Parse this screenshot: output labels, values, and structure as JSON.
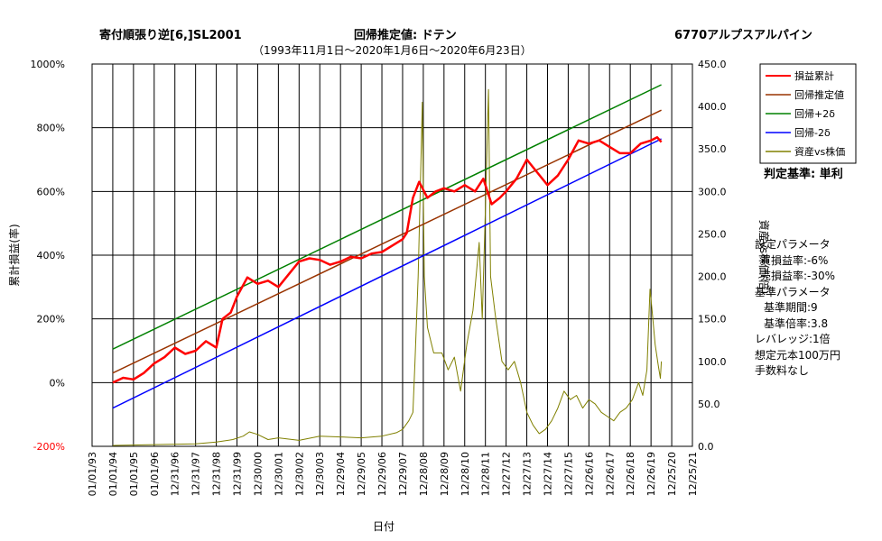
{
  "header": {
    "strategy": "寄付順張り逆[6,]SL2001",
    "method": "回帰推定値: ドテン",
    "ticker": "6770アルプスアルパイン",
    "period": "（1993年11月1日～2020年1月6日～2020年6月23日）"
  },
  "judgement": "判定基準: 単利",
  "params": [
    "設定パラメータ",
    "買損益率:-6%",
    "売損益率:-30%",
    "基準パラメータ",
    "基準期間:9",
    "基準倍率:3.8",
    "レバレッジ:1倍",
    "想定元本100万円",
    "手数料なし"
  ],
  "chart_data": {
    "type": "line",
    "xlabel": "日付",
    "ylabel": "累計損益(率)",
    "y2label": "資産vs株価(倍)",
    "ylim": [
      -200,
      1000
    ],
    "y2lim": [
      0,
      450
    ],
    "yticks": [
      "-200%",
      "0%",
      "200%",
      "400%",
      "600%",
      "800%",
      "1000%"
    ],
    "y2ticks": [
      "0.0",
      "50.0",
      "100.0",
      "150.0",
      "200.0",
      "250.0",
      "300.0",
      "350.0",
      "400.0",
      "450.0"
    ],
    "xticks": [
      "01/01/93",
      "01/01/94",
      "01/01/95",
      "01/01/96",
      "12/31/96",
      "12/31/97",
      "12/31/98",
      "12/31/99",
      "12/30/00",
      "12/30/01",
      "12/30/02",
      "12/30/03",
      "12/29/04",
      "12/29/05",
      "12/29/06",
      "12/29/07",
      "12/28/08",
      "12/28/09",
      "12/28/10",
      "12/28/11",
      "12/27/12",
      "12/27/13",
      "12/27/14",
      "12/27/15",
      "12/26/16",
      "12/26/17",
      "12/26/18",
      "12/26/19",
      "12/25/20",
      "12/25/21"
    ],
    "xrange_years": [
      1993,
      2022
    ],
    "grid": true,
    "legend_position": "top-right",
    "colors": {
      "pnl": "#ff0000",
      "regression": "#993300",
      "upper": "#008000",
      "lower": "#0000ff",
      "ratio": "#808000",
      "left_axis_neg": "#ff0000"
    },
    "legend": [
      "損益累計",
      "回帰推定値",
      "回帰+2δ",
      "回帰-2δ",
      "資産vs株価"
    ],
    "series": [
      {
        "name": "回帰推定値",
        "axis": "left",
        "points": [
          [
            1994.0,
            30
          ],
          [
            2020.5,
            855
          ]
        ]
      },
      {
        "name": "回帰+2δ",
        "axis": "left",
        "points": [
          [
            1994.0,
            105
          ],
          [
            2020.5,
            935
          ]
        ]
      },
      {
        "name": "回帰-2δ",
        "axis": "left",
        "points": [
          [
            1994.0,
            -80
          ],
          [
            2020.5,
            765
          ]
        ]
      },
      {
        "name": "損益累計",
        "axis": "left",
        "points": [
          [
            1994.0,
            0
          ],
          [
            1994.5,
            15
          ],
          [
            1995.0,
            10
          ],
          [
            1995.5,
            30
          ],
          [
            1996.0,
            60
          ],
          [
            1996.5,
            80
          ],
          [
            1997.0,
            110
          ],
          [
            1997.5,
            90
          ],
          [
            1998.0,
            100
          ],
          [
            1998.5,
            130
          ],
          [
            1999.0,
            110
          ],
          [
            1999.3,
            200
          ],
          [
            1999.7,
            220
          ],
          [
            2000.0,
            270
          ],
          [
            2000.5,
            330
          ],
          [
            2001.0,
            310
          ],
          [
            2001.5,
            320
          ],
          [
            2002.0,
            300
          ],
          [
            2002.5,
            340
          ],
          [
            2003.0,
            380
          ],
          [
            2003.5,
            390
          ],
          [
            2004.0,
            385
          ],
          [
            2004.5,
            370
          ],
          [
            2005.0,
            380
          ],
          [
            2005.5,
            395
          ],
          [
            2006.0,
            390
          ],
          [
            2006.5,
            405
          ],
          [
            2007.0,
            410
          ],
          [
            2007.5,
            430
          ],
          [
            2008.0,
            450
          ],
          [
            2008.2,
            470
          ],
          [
            2008.5,
            580
          ],
          [
            2008.8,
            630
          ],
          [
            2009.2,
            580
          ],
          [
            2009.6,
            600
          ],
          [
            2010.0,
            610
          ],
          [
            2010.5,
            600
          ],
          [
            2011.0,
            620
          ],
          [
            2011.5,
            600
          ],
          [
            2011.9,
            640
          ],
          [
            2012.3,
            560
          ],
          [
            2012.7,
            580
          ],
          [
            2013.0,
            600
          ],
          [
            2013.5,
            640
          ],
          [
            2014.0,
            700
          ],
          [
            2014.5,
            660
          ],
          [
            2015.0,
            620
          ],
          [
            2015.5,
            650
          ],
          [
            2016.0,
            700
          ],
          [
            2016.5,
            760
          ],
          [
            2017.0,
            750
          ],
          [
            2017.5,
            760
          ],
          [
            2018.0,
            740
          ],
          [
            2018.5,
            720
          ],
          [
            2019.0,
            720
          ],
          [
            2019.5,
            750
          ],
          [
            2020.0,
            760
          ],
          [
            2020.3,
            770
          ],
          [
            2020.5,
            755
          ]
        ]
      },
      {
        "name": "資産vs株価",
        "axis": "right",
        "points": [
          [
            1994.0,
            1
          ],
          [
            1996.0,
            2
          ],
          [
            1998.0,
            3
          ],
          [
            1999.0,
            5
          ],
          [
            1999.8,
            8
          ],
          [
            2000.3,
            12
          ],
          [
            2000.6,
            17
          ],
          [
            2001.0,
            14
          ],
          [
            2001.5,
            8
          ],
          [
            2002.0,
            10
          ],
          [
            2003.0,
            7
          ],
          [
            2004.0,
            12
          ],
          [
            2005.0,
            11
          ],
          [
            2006.0,
            10
          ],
          [
            2007.0,
            12
          ],
          [
            2007.7,
            16
          ],
          [
            2008.0,
            20
          ],
          [
            2008.3,
            30
          ],
          [
            2008.5,
            40
          ],
          [
            2008.6,
            100
          ],
          [
            2008.75,
            200
          ],
          [
            2008.85,
            300
          ],
          [
            2008.95,
            405
          ],
          [
            2009.05,
            200
          ],
          [
            2009.2,
            140
          ],
          [
            2009.5,
            110
          ],
          [
            2009.9,
            110
          ],
          [
            2010.2,
            90
          ],
          [
            2010.5,
            105
          ],
          [
            2010.8,
            65
          ],
          [
            2011.1,
            120
          ],
          [
            2011.4,
            160
          ],
          [
            2011.7,
            240
          ],
          [
            2011.85,
            150
          ],
          [
            2012.0,
            280
          ],
          [
            2012.15,
            420
          ],
          [
            2012.25,
            200
          ],
          [
            2012.5,
            150
          ],
          [
            2012.8,
            100
          ],
          [
            2013.1,
            90
          ],
          [
            2013.4,
            100
          ],
          [
            2013.7,
            75
          ],
          [
            2014.0,
            40
          ],
          [
            2014.3,
            25
          ],
          [
            2014.6,
            15
          ],
          [
            2014.9,
            20
          ],
          [
            2015.2,
            30
          ],
          [
            2015.5,
            45
          ],
          [
            2015.8,
            65
          ],
          [
            2016.1,
            55
          ],
          [
            2016.4,
            60
          ],
          [
            2016.7,
            45
          ],
          [
            2017.0,
            55
          ],
          [
            2017.3,
            50
          ],
          [
            2017.6,
            40
          ],
          [
            2017.9,
            35
          ],
          [
            2018.2,
            30
          ],
          [
            2018.5,
            40
          ],
          [
            2018.8,
            45
          ],
          [
            2019.1,
            55
          ],
          [
            2019.4,
            75
          ],
          [
            2019.6,
            60
          ],
          [
            2019.8,
            90
          ],
          [
            2019.95,
            185
          ],
          [
            2020.05,
            160
          ],
          [
            2020.2,
            120
          ],
          [
            2020.35,
            95
          ],
          [
            2020.45,
            80
          ],
          [
            2020.5,
            100
          ]
        ]
      }
    ]
  }
}
